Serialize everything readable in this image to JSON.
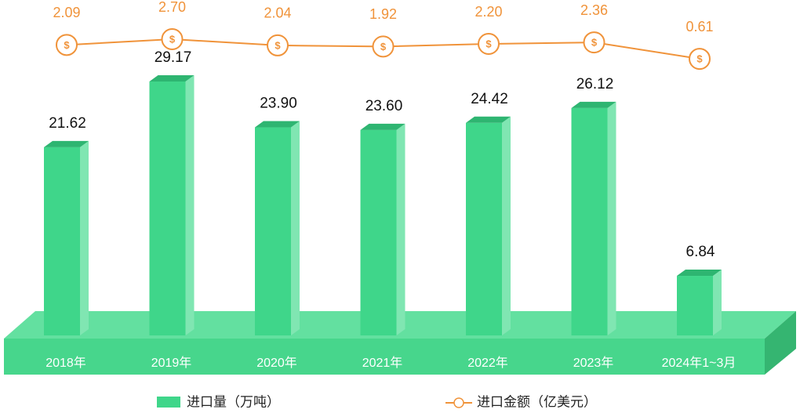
{
  "chart_data": {
    "type": "bar-line",
    "categories": [
      "2018年",
      "2019年",
      "2020年",
      "2021年",
      "2022年",
      "2023年",
      "2024年1~3月"
    ],
    "series": [
      {
        "name": "进口量（万吨）",
        "type": "bar",
        "color": "#3fd68a",
        "values": [
          21.62,
          29.17,
          23.9,
          23.6,
          24.42,
          26.12,
          6.84
        ],
        "value_labels": [
          "21.62",
          "29.17",
          "23.90",
          "23.60",
          "24.42",
          "26.12",
          "6.84"
        ]
      },
      {
        "name": "进口金额（亿美元）",
        "type": "line",
        "color": "#f0933a",
        "values": [
          2.09,
          2.7,
          2.04,
          1.92,
          2.2,
          2.36,
          0.61
        ],
        "value_labels": [
          "2.09",
          "2.70",
          "2.04",
          "1.92",
          "2.20",
          "2.36",
          "0.61"
        ]
      }
    ]
  }
}
